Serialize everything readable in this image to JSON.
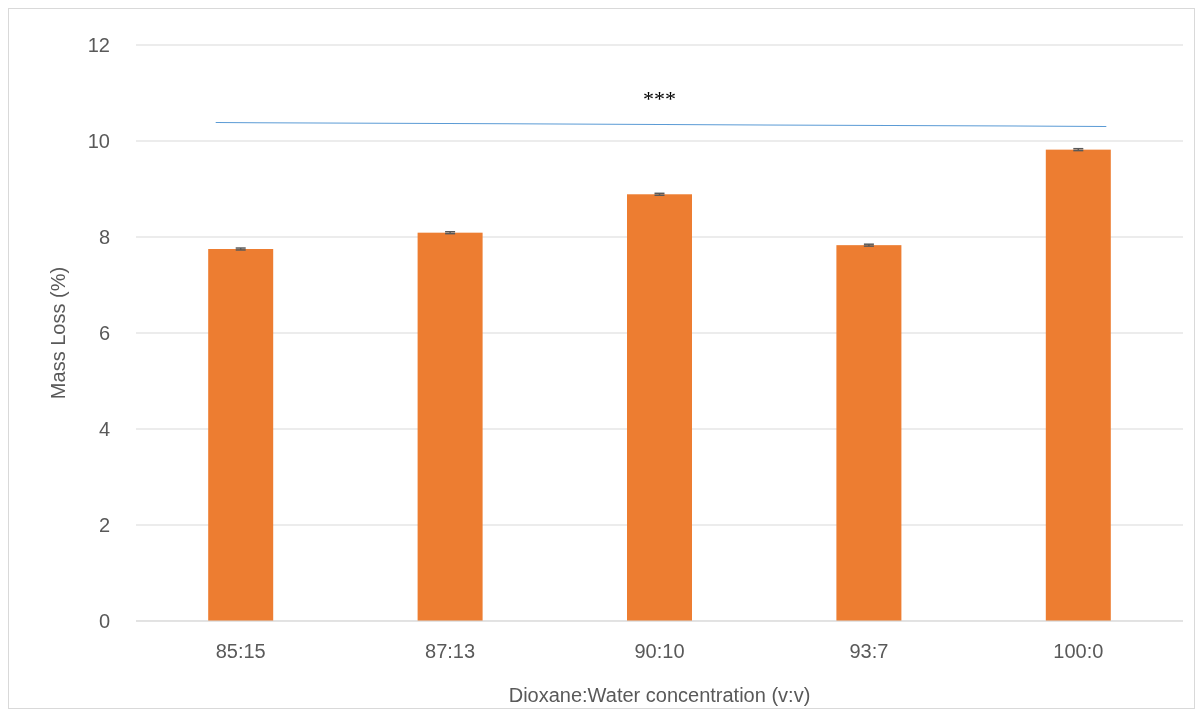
{
  "chart_data": {
    "type": "bar",
    "categories": [
      "85:15",
      "87:13",
      "90:10",
      "93:7",
      "100:0"
    ],
    "values": [
      7.75,
      8.09,
      8.89,
      7.83,
      9.82
    ],
    "errors": [
      0.02,
      0.02,
      0.02,
      0.02,
      0.02
    ],
    "color": "#ed7d31",
    "xlabel": "Dioxane:Water concentration (v:v)",
    "ylabel": "Mass Loss (%)",
    "ylim": [
      0,
      12
    ],
    "yticks": [
      0,
      2,
      4,
      6,
      8,
      10,
      12
    ],
    "grid": "y",
    "annotations": [
      "***"
    ]
  }
}
